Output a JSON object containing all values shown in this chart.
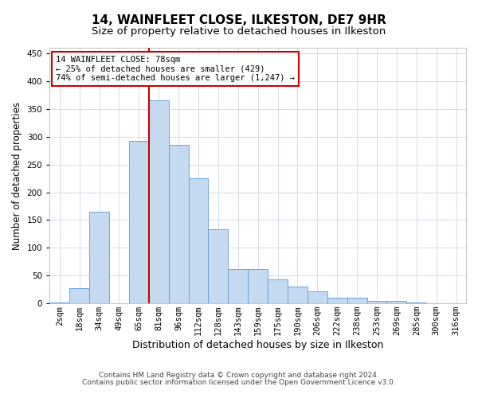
{
  "title": "14, WAINFLEET CLOSE, ILKESTON, DE7 9HR",
  "subtitle": "Size of property relative to detached houses in Ilkeston",
  "xlabel": "Distribution of detached houses by size in Ilkeston",
  "ylabel": "Number of detached properties",
  "footnote1": "Contains HM Land Registry data © Crown copyright and database right 2024.",
  "footnote2": "Contains public sector information licensed under the Open Government Licence v3.0.",
  "categories": [
    "2sqm",
    "18sqm",
    "34sqm",
    "49sqm",
    "65sqm",
    "81sqm",
    "96sqm",
    "112sqm",
    "128sqm",
    "143sqm",
    "159sqm",
    "175sqm",
    "190sqm",
    "206sqm",
    "222sqm",
    "238sqm",
    "253sqm",
    "269sqm",
    "285sqm",
    "300sqm",
    "316sqm"
  ],
  "values": [
    2,
    27,
    165,
    0,
    292,
    365,
    285,
    225,
    133,
    62,
    62,
    43,
    30,
    22,
    10,
    10,
    5,
    4,
    1,
    0,
    0
  ],
  "bar_color": "#c5d9f1",
  "bar_edge_color": "#5b9bd5",
  "vline_color": "#cc0000",
  "vline_pos": 4.5,
  "annotation_text": "14 WAINFLEET CLOSE: 78sqm\n← 25% of detached houses are smaller (429)\n74% of semi-detached houses are larger (1,247) →",
  "annotation_box_color": "#ffffff",
  "annotation_box_edge": "#cc0000",
  "ylim": [
    0,
    460
  ],
  "yticks": [
    0,
    50,
    100,
    150,
    200,
    250,
    300,
    350,
    400,
    450
  ],
  "title_fontsize": 11,
  "subtitle_fontsize": 9.5,
  "ylabel_fontsize": 8.5,
  "xlabel_fontsize": 9,
  "tick_fontsize": 7.5,
  "annot_fontsize": 7.5,
  "footnote_fontsize": 6.5,
  "bg_color": "#ffffff",
  "grid_color": "#ccd6e8"
}
